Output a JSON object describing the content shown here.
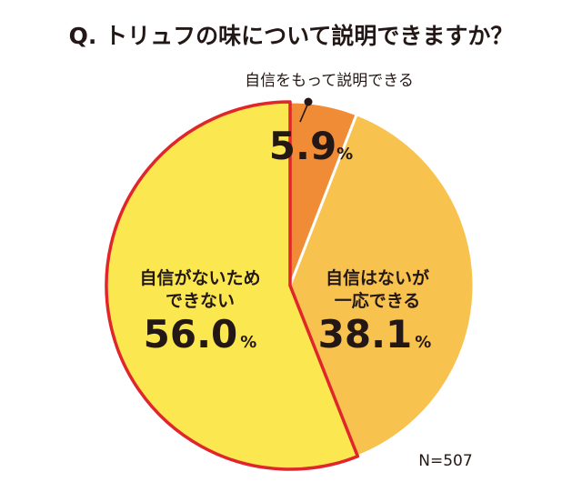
{
  "title": "Q. トリュフの味について説明できますか？",
  "sample_note": "N=507",
  "percent_symbol": "%",
  "colors": {
    "border_highlight": "#e0252b",
    "text": "#231815"
  },
  "chart_data": {
    "type": "pie",
    "title": "Q. トリュフの味について説明できますか？",
    "start": "12 o'clock, clockwise",
    "slices": [
      {
        "label": "自信をもって説明できる",
        "label_lines": [
          "自信をもって説明できる"
        ],
        "value": 5.9,
        "value_text": "5.9",
        "color": "#f08c35",
        "highlighted": false
      },
      {
        "label": "自信はないが一応できる",
        "label_lines": [
          "自信はないが",
          "一応できる"
        ],
        "value": 38.1,
        "value_text": "38.1",
        "color": "#f8c24f",
        "highlighted": false
      },
      {
        "label": "自信がないためできない",
        "label_lines": [
          "自信がないため",
          "できない"
        ],
        "value": 56.0,
        "value_text": "56.0",
        "color": "#fbe74f",
        "highlighted": true
      }
    ]
  }
}
